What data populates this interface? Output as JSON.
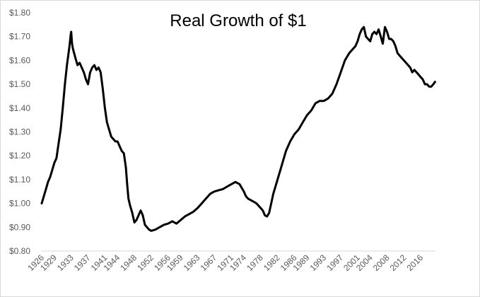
{
  "chart_data": {
    "type": "line",
    "title": "Real Growth of $1",
    "xlabel": "",
    "ylabel": "",
    "ylim": [
      0.8,
      1.8
    ],
    "xlim": [
      1926,
      2019.5
    ],
    "grid": false,
    "legend": "none",
    "colors": {
      "line": "#000000",
      "axis": "#d9d9d9",
      "tick_text": "#595959"
    },
    "y_ticks": [
      "$0.80",
      "$0.90",
      "$1.00",
      "$1.10",
      "$1.20",
      "$1.30",
      "$1.40",
      "$1.50",
      "$1.60",
      "$1.70",
      "$1.80"
    ],
    "x_ticks": [
      "1926",
      "1929",
      "1933",
      "1937",
      "1941",
      "1944",
      "1948",
      "1952",
      "1956",
      "1959",
      "1963",
      "1967",
      "1971",
      "1974",
      "1978",
      "1982",
      "1986",
      "1989",
      "1993",
      "1997",
      "2001",
      "2004",
      "2008",
      "2012",
      "2016"
    ],
    "series": [
      {
        "x": [
          1926.0,
          1926.5,
          1927.0,
          1927.5,
          1928.0,
          1928.5,
          1929.0,
          1929.5,
          1930.0,
          1930.5,
          1931.0,
          1931.5,
          1932.0,
          1932.3,
          1932.6,
          1932.9,
          1933.0,
          1933.2,
          1933.4,
          1933.7,
          1934.0,
          1934.5,
          1935.0,
          1935.5,
          1936.0,
          1936.5,
          1937.0,
          1937.5,
          1938.0,
          1938.5,
          1939.0,
          1939.5,
          1940.0,
          1940.5,
          1941.0,
          1941.5,
          1942.0,
          1942.5,
          1943.0,
          1943.5,
          1944.0,
          1944.5,
          1945.0,
          1945.5,
          1946.0,
          1946.3,
          1946.6,
          1947.0,
          1947.5,
          1948.0,
          1948.5,
          1949.0,
          1949.5,
          1950.0,
          1950.5,
          1951.0,
          1951.5,
          1952.0,
          1953.0,
          1954.0,
          1955.0,
          1956.0,
          1957.0,
          1958.0,
          1959.0,
          1960.0,
          1961.0,
          1962.0,
          1963.0,
          1964.0,
          1965.0,
          1966.0,
          1967.0,
          1968.0,
          1969.0,
          1970.0,
          1970.5,
          1971.0,
          1971.5,
          1972.0,
          1973.0,
          1974.0,
          1974.5,
          1975.0,
          1976.0,
          1977.0,
          1978.0,
          1978.5,
          1979.0,
          1979.5,
          1980.0,
          1981.0,
          1982.0,
          1983.0,
          1984.0,
          1985.0,
          1986.0,
          1987.0,
          1988.0,
          1989.0,
          1990.0,
          1991.0,
          1992.0,
          1993.0,
          1994.0,
          1995.0,
          1996.0,
          1997.0,
          1998.0,
          1999.0,
          2000.0,
          2000.5,
          2001.0,
          2001.5,
          2002.0,
          2002.5,
          2003.0,
          2003.5,
          2004.0,
          2004.5,
          2005.0,
          2005.5,
          2006.0,
          2006.5,
          2007.0,
          2007.5,
          2008.0,
          2008.5,
          2009.0,
          2009.5,
          2010.0,
          2010.5,
          2011.0,
          2012.0,
          2013.0,
          2013.5,
          2014.0,
          2014.5,
          2015.0,
          2015.5,
          2016.0,
          2016.5,
          2017.0,
          2017.5,
          2018.0,
          2018.5,
          2019.0,
          2019.4
        ],
        "values": [
          1.0,
          1.03,
          1.06,
          1.09,
          1.11,
          1.14,
          1.17,
          1.19,
          1.25,
          1.31,
          1.4,
          1.5,
          1.58,
          1.62,
          1.66,
          1.71,
          1.72,
          1.67,
          1.65,
          1.63,
          1.61,
          1.58,
          1.59,
          1.57,
          1.55,
          1.52,
          1.5,
          1.55,
          1.57,
          1.58,
          1.56,
          1.57,
          1.55,
          1.48,
          1.4,
          1.34,
          1.31,
          1.28,
          1.27,
          1.26,
          1.26,
          1.24,
          1.22,
          1.21,
          1.15,
          1.08,
          1.02,
          0.99,
          0.96,
          0.92,
          0.93,
          0.95,
          0.97,
          0.95,
          0.91,
          0.9,
          0.89,
          0.885,
          0.89,
          0.9,
          0.91,
          0.915,
          0.925,
          0.915,
          0.93,
          0.945,
          0.955,
          0.965,
          0.98,
          1.0,
          1.02,
          1.04,
          1.05,
          1.055,
          1.06,
          1.07,
          1.075,
          1.08,
          1.085,
          1.09,
          1.08,
          1.05,
          1.03,
          1.02,
          1.01,
          1.0,
          0.98,
          0.97,
          0.95,
          0.945,
          0.96,
          1.04,
          1.1,
          1.16,
          1.22,
          1.26,
          1.29,
          1.31,
          1.34,
          1.37,
          1.39,
          1.42,
          1.43,
          1.43,
          1.44,
          1.46,
          1.5,
          1.55,
          1.6,
          1.63,
          1.65,
          1.66,
          1.68,
          1.71,
          1.73,
          1.74,
          1.7,
          1.69,
          1.68,
          1.71,
          1.72,
          1.71,
          1.73,
          1.7,
          1.67,
          1.74,
          1.72,
          1.69,
          1.69,
          1.68,
          1.66,
          1.63,
          1.62,
          1.6,
          1.58,
          1.57,
          1.55,
          1.56,
          1.55,
          1.54,
          1.53,
          1.52,
          1.5,
          1.5,
          1.49,
          1.49,
          1.5,
          1.51
        ]
      }
    ]
  }
}
